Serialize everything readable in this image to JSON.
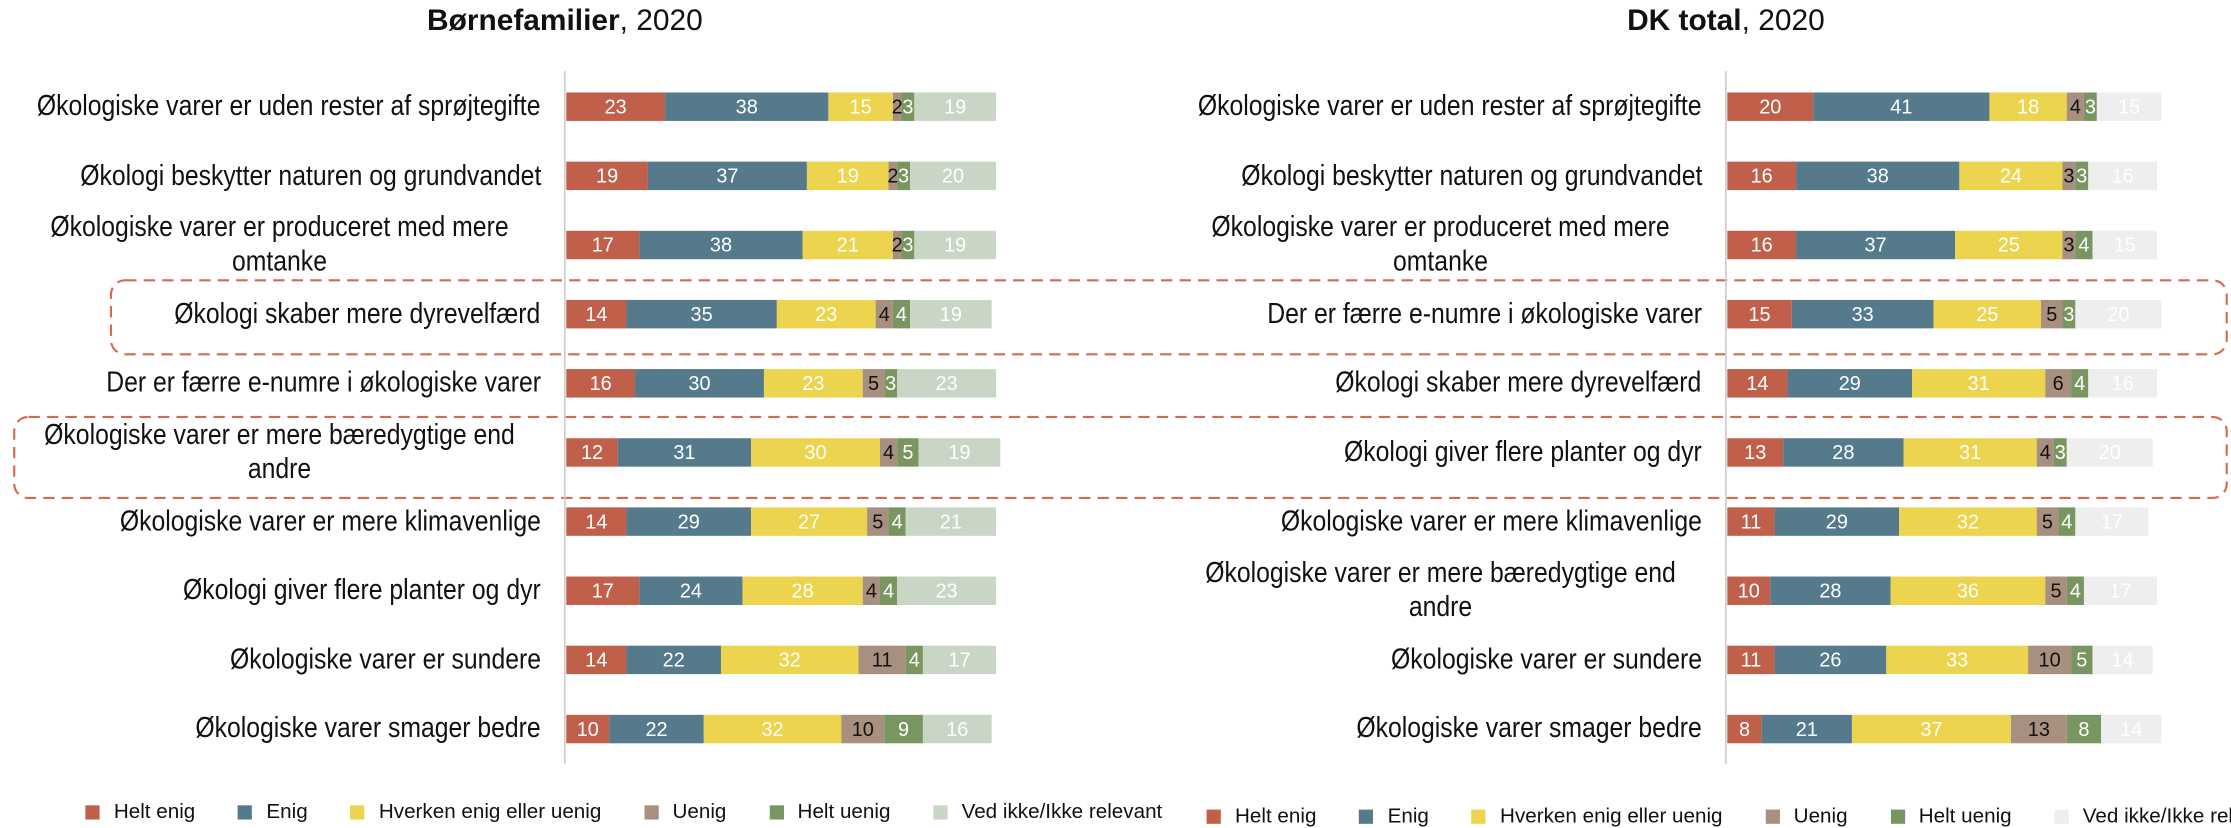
{
  "chart_data": [
    {
      "type": "bar",
      "orientation": "horizontal",
      "stacked": true,
      "title": {
        "bold": "Børnefamilier",
        "rest": ", 2020"
      },
      "xlim": [
        0,
        100
      ],
      "categories": [
        "Økologiske varer er uden rester af sprøjtegifte",
        "Økologi beskytter naturen og grundvandet",
        "Økologiske varer er produceret med mere omtanke",
        "Økologi skaber mere dyrevelfærd",
        "Der er færre e-numre i økologiske varer",
        "Økologiske varer er mere bæredygtige end andre",
        "Økologiske varer er mere klimavenlige",
        "Økologi giver flere planter og dyr",
        "Økologiske varer er sundere",
        "Økologiske varer smager bedre"
      ],
      "series": [
        {
          "name": "Helt enig",
          "color": "#c0604a",
          "label_color": "#ffffff",
          "values": [
            23,
            19,
            17,
            14,
            16,
            12,
            14,
            17,
            14,
            10
          ]
        },
        {
          "name": "Enig",
          "color": "#557a8c",
          "label_color": "#ffffff",
          "values": [
            38,
            37,
            38,
            35,
            30,
            31,
            29,
            24,
            22,
            22
          ]
        },
        {
          "name": "Hverken enig eller uenig",
          "color": "#ecd44f",
          "label_color": "#ffffff",
          "values": [
            15,
            19,
            21,
            23,
            23,
            30,
            27,
            28,
            32,
            32
          ]
        },
        {
          "name": "Uenig",
          "color": "#a89080",
          "label_color": "#111111",
          "values": [
            2,
            2,
            2,
            4,
            5,
            4,
            5,
            4,
            11,
            10
          ]
        },
        {
          "name": "Helt uenig",
          "color": "#7a9660",
          "label_color": "#ffffff",
          "values": [
            3,
            3,
            3,
            4,
            3,
            5,
            4,
            4,
            4,
            9
          ]
        },
        {
          "name": "Ved ikke/Ikke relevant",
          "color": "#c9d6c6",
          "label_color": "#ffffff",
          "values": [
            19,
            20,
            19,
            19,
            23,
            19,
            21,
            23,
            17,
            16
          ]
        }
      ]
    },
    {
      "type": "bar",
      "orientation": "horizontal",
      "stacked": true,
      "title": {
        "bold": "DK total",
        "rest": ", 2020"
      },
      "xlim": [
        0,
        100
      ],
      "categories": [
        "Økologiske varer er uden rester af sprøjtegifte",
        "Økologi beskytter naturen og grundvandet",
        "Økologiske varer er produceret med mere omtanke",
        "Der er færre e-numre i økologiske varer",
        "Økologi skaber mere dyrevelfærd",
        "Økologi giver flere planter og dyr",
        "Økologiske varer er mere klimavenlige",
        "Økologiske varer er mere bæredygtige end andre",
        "Økologiske varer er sundere",
        "Økologiske varer smager bedre"
      ],
      "series": [
        {
          "name": "Helt enig",
          "color": "#c0604a",
          "label_color": "#ffffff",
          "values": [
            20,
            16,
            16,
            15,
            14,
            13,
            11,
            10,
            11,
            8
          ]
        },
        {
          "name": "Enig",
          "color": "#557a8c",
          "label_color": "#ffffff",
          "values": [
            41,
            38,
            37,
            33,
            29,
            28,
            29,
            28,
            26,
            21
          ]
        },
        {
          "name": "Hverken enig eller uenig",
          "color": "#ecd44f",
          "label_color": "#ffffff",
          "values": [
            18,
            24,
            25,
            25,
            31,
            31,
            32,
            36,
            33,
            37
          ]
        },
        {
          "name": "Uenig",
          "color": "#a89080",
          "label_color": "#111111",
          "values": [
            4,
            3,
            3,
            5,
            6,
            4,
            5,
            5,
            10,
            13
          ]
        },
        {
          "name": "Helt uenig",
          "color": "#7a9660",
          "label_color": "#ffffff",
          "values": [
            3,
            3,
            4,
            3,
            4,
            3,
            4,
            4,
            5,
            8
          ]
        },
        {
          "name": "Ved ikke/Ikke relevant",
          "color": "#eeeeee",
          "label_color": "#ffffff",
          "values": [
            15,
            16,
            15,
            20,
            16,
            20,
            17,
            17,
            14,
            14
          ]
        }
      ]
    }
  ]
}
